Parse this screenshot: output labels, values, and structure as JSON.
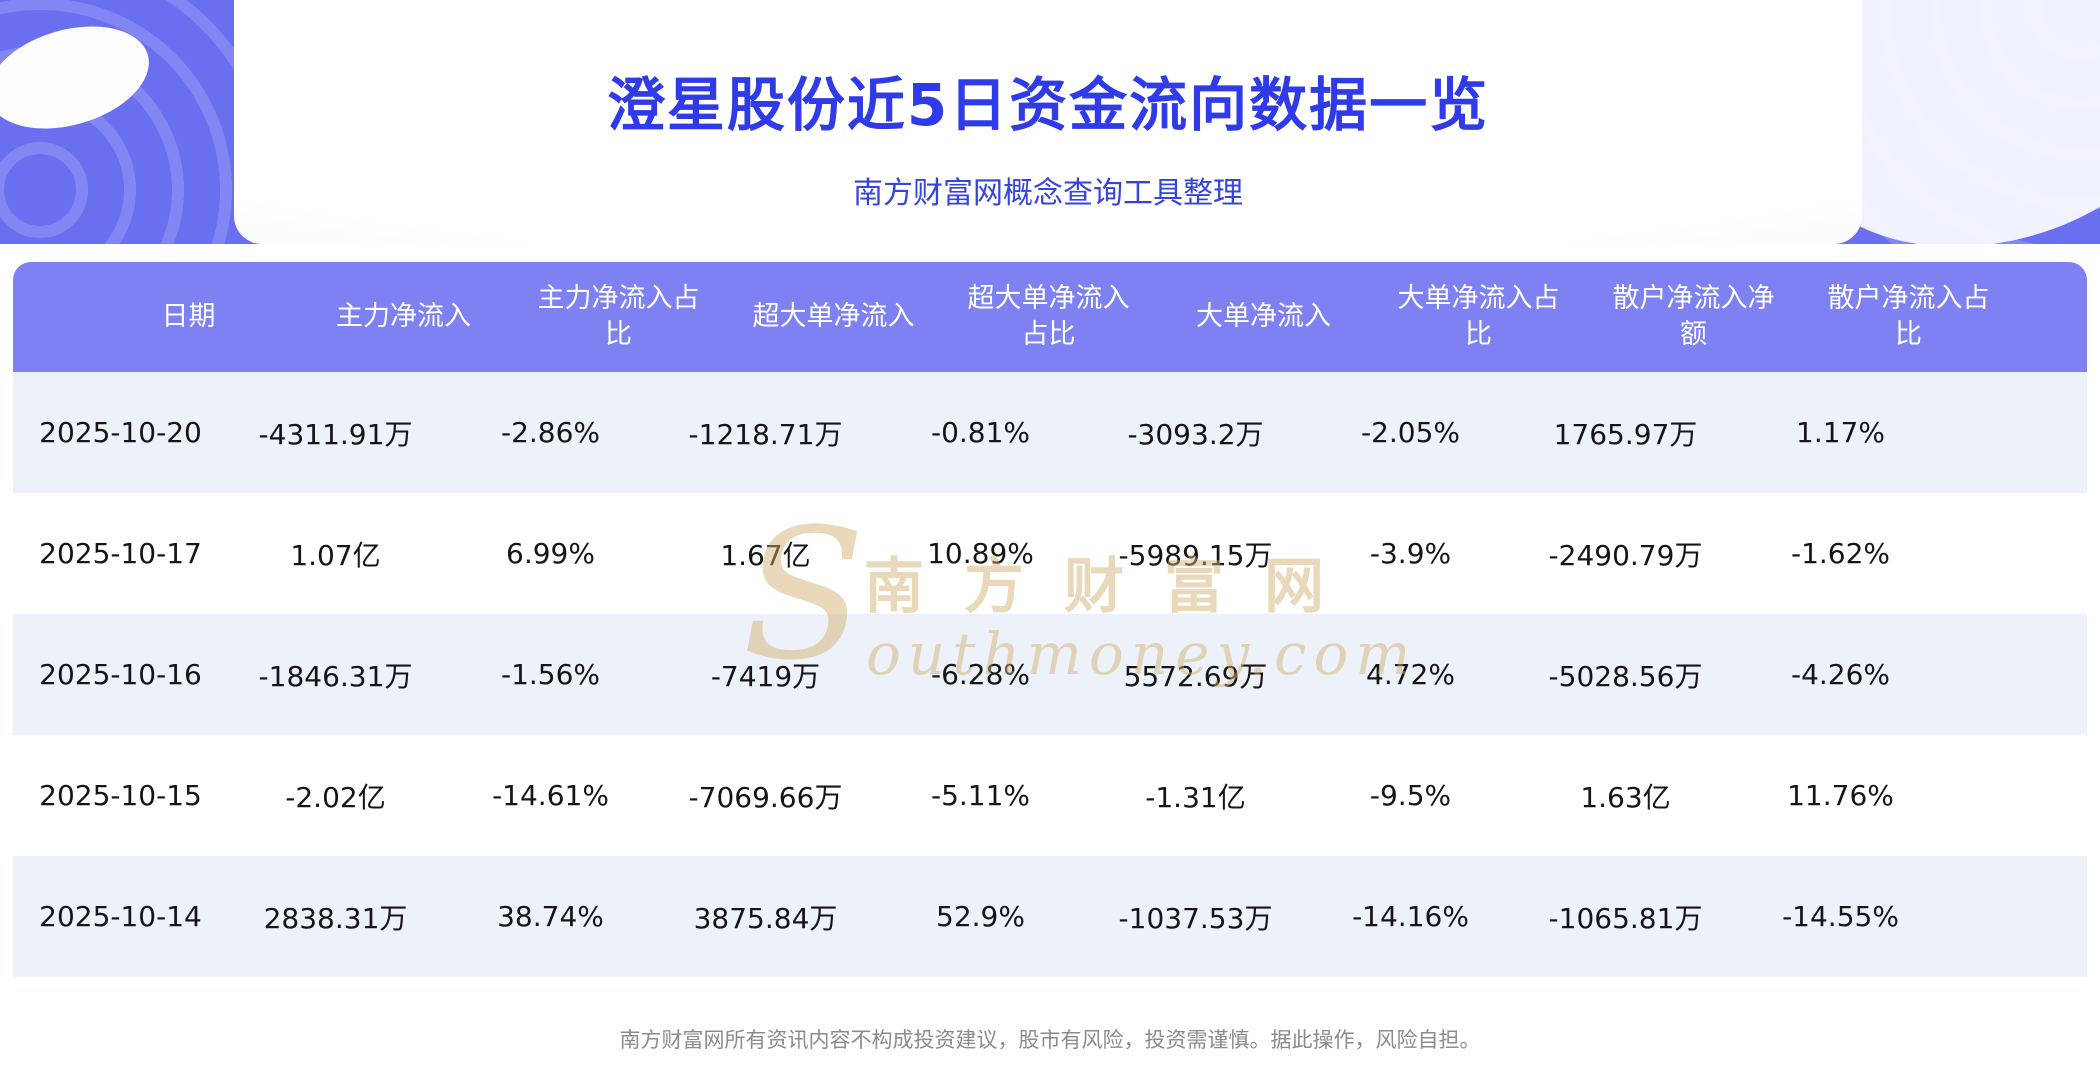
{
  "page": {
    "footer": "南方财富网所有资讯内容不构成投资建议，股市有风险，投资需谨慎。据此操作，风险自担。"
  },
  "watermark": {
    "initial": "S",
    "cn": "南方财富网",
    "en": "outhmoney.com"
  },
  "colors": {
    "banner": "#6a6ff0",
    "table_header": "#7d81f2",
    "row_alt": "#edf1fa",
    "title_text": "#2f3ae8",
    "watermark": "#d2b06e"
  },
  "chart_data": {
    "type": "table",
    "title": "澄星股份近5日资金流向数据一览",
    "subtitle": "南方财富网概念查询工具整理",
    "columns": [
      "日期",
      "主力净流入",
      "主力净流入占比",
      "超大单净流入",
      "超大单净流入占比",
      "大单净流入",
      "大单净流入占比",
      "散户净流入净额",
      "散户净流入占比"
    ],
    "rows": [
      [
        "2025-10-20",
        "-4311.91万",
        "-2.86%",
        "-1218.71万",
        "-0.81%",
        "-3093.2万",
        "-2.05%",
        "1765.97万",
        "1.17%"
      ],
      [
        "2025-10-17",
        "1.07亿",
        "6.99%",
        "1.67亿",
        "10.89%",
        "-5989.15万",
        "-3.9%",
        "-2490.79万",
        "-1.62%"
      ],
      [
        "2025-10-16",
        "-1846.31万",
        "-1.56%",
        "-7419万",
        "-6.28%",
        "5572.69万",
        "4.72%",
        "-5028.56万",
        "-4.26%"
      ],
      [
        "2025-10-15",
        "-2.02亿",
        "-14.61%",
        "-7069.66万",
        "-5.11%",
        "-1.31亿",
        "-9.5%",
        "1.63亿",
        "11.76%"
      ],
      [
        "2025-10-14",
        "2838.31万",
        "38.74%",
        "3875.84万",
        "52.9%",
        "-1037.53万",
        "-14.16%",
        "-1065.81万",
        "-14.55%"
      ]
    ]
  }
}
